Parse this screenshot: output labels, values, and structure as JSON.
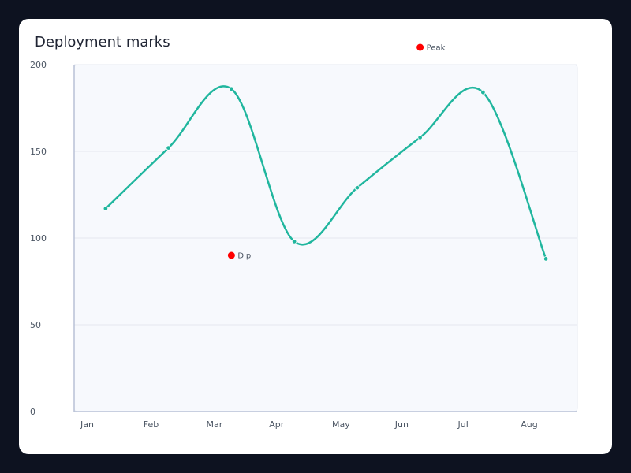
{
  "chart_data": {
    "type": "line",
    "title": "Deployment marks",
    "xlabel": "",
    "ylabel": "",
    "categories": [
      "Jan",
      "Feb",
      "Mar",
      "Apr",
      "May",
      "Jun",
      "Jul",
      "Aug"
    ],
    "ylim": [
      0,
      200
    ],
    "yticks": [
      0,
      50,
      100,
      150,
      200
    ],
    "grid": true,
    "series": [
      {
        "name": "",
        "values": [
          117,
          152,
          186,
          98,
          129,
          158,
          184,
          88
        ]
      }
    ],
    "annotations": [
      {
        "label": "Peak",
        "x": "Jun",
        "y": 210
      },
      {
        "label": "Dip",
        "x": "Mar",
        "y": 90
      }
    ]
  },
  "colors": {
    "line": "#20b69e",
    "marker": "#ff0000",
    "plot_bg": "#f7f9fd",
    "grid": "#e4e8f0",
    "axis": "#b8c1d6",
    "card_bg": "#ffffff",
    "page_bg": "#0d1220"
  }
}
